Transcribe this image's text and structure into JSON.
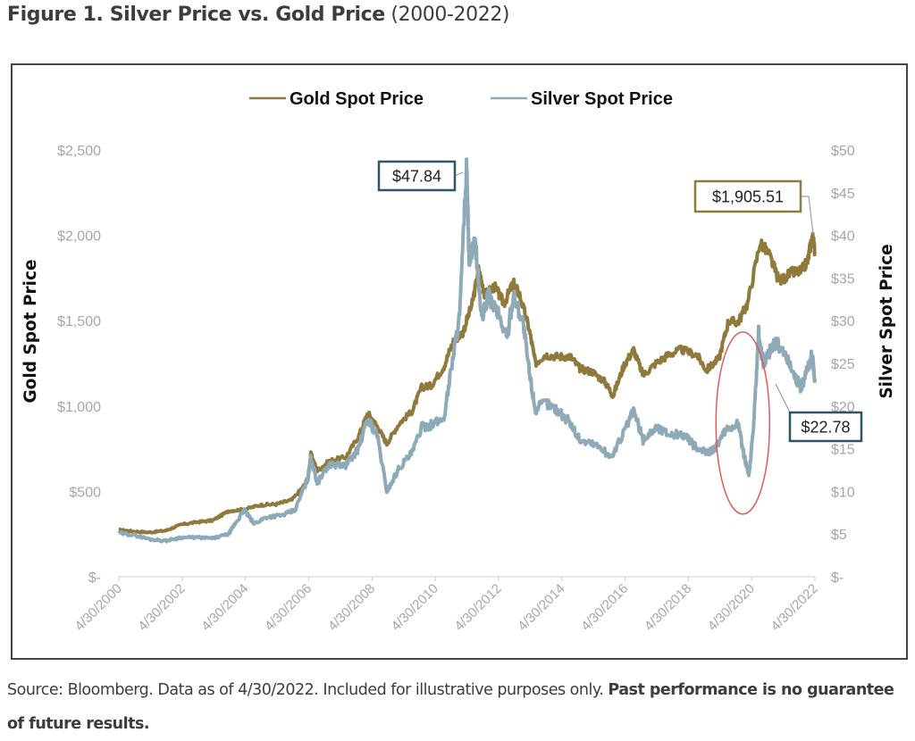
{
  "page": {
    "title_bold": "Figure 1. Silver Price vs. Gold Price",
    "title_light": "(2000-2022)",
    "source_text": "Source: Bloomberg. Data as of 4/30/2022. Included for illustrative purposes only.",
    "disclaimer_bold": "Past performance is no guarantee of future results."
  },
  "chart_data": {
    "type": "line",
    "title": "Silver Price vs. Gold Price (2000-2022)",
    "legend": [
      "Gold Spot Price",
      "Silver Spot Price"
    ],
    "legend_position": "top-center",
    "colors": {
      "gold": "#8f7a3c",
      "silver": "#8ea9b8",
      "gold_box": "#8f7a3c",
      "silver_box": "#2f5666",
      "highlight_ellipse": "#e05a5a",
      "tick_text": "#a6a6a6",
      "axis_title": "#111111"
    },
    "x_ticks": [
      "4/30/2000",
      "4/30/2002",
      "4/30/2004",
      "4/30/2006",
      "4/30/2008",
      "4/30/2010",
      "4/30/2012",
      "4/30/2014",
      "4/30/2016",
      "4/30/2018",
      "4/30/2020",
      "4/30/2022"
    ],
    "x_range": [
      2000.33,
      2022.33
    ],
    "y_left": {
      "label": "Gold Spot Price",
      "range": [
        0,
        2500
      ],
      "ticks": [
        0,
        500,
        1000,
        1500,
        2000,
        2500
      ],
      "tick_labels": [
        "$-",
        "$500",
        "$1,000",
        "$1,500",
        "$2,000",
        "$2,500"
      ]
    },
    "y_right": {
      "label": "Silver Spot Price",
      "range": [
        0,
        50
      ],
      "ticks": [
        0,
        5,
        10,
        15,
        20,
        25,
        30,
        35,
        40,
        45,
        50
      ],
      "tick_labels": [
        "$-",
        "$5",
        "$10",
        "$15",
        "$20",
        "$25",
        "$30",
        "$35",
        "$40",
        "$45",
        "$50"
      ]
    },
    "gridlines": false,
    "series": [
      {
        "name": "Gold Spot Price",
        "axis": "left",
        "x": [
          2000.33,
          2000.8,
          2001.3,
          2001.8,
          2002.3,
          2002.8,
          2003.3,
          2003.8,
          2004.3,
          2004.8,
          2005.3,
          2005.8,
          2006.3,
          2006.4,
          2006.6,
          2007.0,
          2007.5,
          2007.9,
          2008.2,
          2008.5,
          2008.8,
          2009.2,
          2009.6,
          2009.9,
          2010.2,
          2010.6,
          2010.9,
          2011.2,
          2011.5,
          2011.7,
          2011.9,
          2012.2,
          2012.5,
          2012.8,
          2013.0,
          2013.3,
          2013.5,
          2013.8,
          2014.2,
          2014.6,
          2014.9,
          2015.3,
          2015.7,
          2015.95,
          2016.3,
          2016.6,
          2016.9,
          2017.3,
          2017.7,
          2018.1,
          2018.6,
          2018.9,
          2019.3,
          2019.6,
          2019.9,
          2020.2,
          2020.6,
          2020.9,
          2021.2,
          2021.6,
          2021.9,
          2022.1,
          2022.25,
          2022.33
        ],
        "values": [
          275,
          265,
          260,
          270,
          305,
          320,
          330,
          385,
          395,
          420,
          425,
          450,
          560,
          720,
          620,
          680,
          700,
          820,
          960,
          880,
          780,
          900,
          970,
          1110,
          1120,
          1230,
          1380,
          1430,
          1600,
          1800,
          1650,
          1700,
          1600,
          1720,
          1650,
          1450,
          1250,
          1300,
          1290,
          1290,
          1220,
          1200,
          1140,
          1060,
          1240,
          1330,
          1180,
          1250,
          1300,
          1330,
          1300,
          1210,
          1280,
          1500,
          1490,
          1600,
          1960,
          1880,
          1730,
          1780,
          1790,
          1850,
          2000,
          1905.51
        ]
      },
      {
        "name": "Silver Spot Price",
        "axis": "right",
        "x": [
          2000.33,
          2000.8,
          2001.3,
          2001.8,
          2002.3,
          2002.8,
          2003.3,
          2003.8,
          2004.0,
          2004.3,
          2004.6,
          2005.0,
          2005.5,
          2005.9,
          2006.3,
          2006.4,
          2006.6,
          2007.0,
          2007.5,
          2007.9,
          2008.2,
          2008.5,
          2008.8,
          2009.2,
          2009.6,
          2009.9,
          2010.2,
          2010.6,
          2010.9,
          2011.1,
          2011.32,
          2011.4,
          2011.6,
          2011.8,
          2012.0,
          2012.3,
          2012.6,
          2012.8,
          2013.1,
          2013.3,
          2013.5,
          2013.8,
          2014.2,
          2014.6,
          2014.9,
          2015.4,
          2015.9,
          2016.3,
          2016.6,
          2016.9,
          2017.3,
          2017.7,
          2018.2,
          2018.6,
          2018.9,
          2019.2,
          2019.5,
          2019.9,
          2020.1,
          2020.25,
          2020.4,
          2020.55,
          2020.7,
          2020.9,
          2021.1,
          2021.4,
          2021.7,
          2021.9,
          2022.1,
          2022.25,
          2022.33
        ],
        "values": [
          5.1,
          4.9,
          4.4,
          4.2,
          4.6,
          4.6,
          4.5,
          5.0,
          6.2,
          7.8,
          6.2,
          7.0,
          7.2,
          7.8,
          11.5,
          14.0,
          11.0,
          13.2,
          13.0,
          15.0,
          18.5,
          16.5,
          10.0,
          12.8,
          14.5,
          17.5,
          17.8,
          18.5,
          26.0,
          30.5,
          47.84,
          37.0,
          39.0,
          30.0,
          33.0,
          31.0,
          28.0,
          33.0,
          30.0,
          24.0,
          19.5,
          20.5,
          19.5,
          18.0,
          16.0,
          15.5,
          14.0,
          17.0,
          19.5,
          16.0,
          17.5,
          16.8,
          16.6,
          15.0,
          14.5,
          15.2,
          17.0,
          18.0,
          14.0,
          12.0,
          18.0,
          28.5,
          25.0,
          26.5,
          27.5,
          26.0,
          23.5,
          22.0,
          24.5,
          26.0,
          22.78
        ]
      }
    ],
    "annotations": [
      {
        "text": "$47.84",
        "series": "Silver Spot Price",
        "x": 2011.32,
        "value": 47.84,
        "box_style": "silver"
      },
      {
        "text": "$1,905.51",
        "series": "Gold Spot Price",
        "x": 2022.33,
        "value": 1905.51,
        "box_style": "gold"
      },
      {
        "text": "$22.78",
        "series": "Silver Spot Price",
        "x": 2022.33,
        "value": 22.78,
        "box_style": "silver"
      }
    ],
    "highlight": {
      "shape": "ellipse",
      "x_center": 2020.05,
      "silver_value_center": 18.0,
      "note": "2020 silver surge circled in red"
    }
  }
}
